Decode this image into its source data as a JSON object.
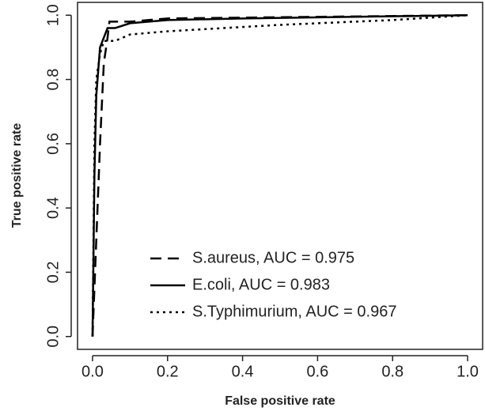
{
  "chart_data": {
    "type": "line",
    "xlabel": "False positive rate",
    "ylabel": "True positive rate",
    "xlim": [
      -0.04,
      1.04
    ],
    "ylim": [
      -0.04,
      1.04
    ],
    "xticks": [
      {
        "value": 0,
        "label": "0.0"
      },
      0.2,
      0.4,
      0.6,
      0.8,
      {
        "value": 1,
        "label": "1.0"
      }
    ],
    "yticks": [
      {
        "value": 0,
        "label": "0.0"
      },
      0.2,
      0.4,
      0.6,
      0.8,
      {
        "value": 1,
        "label": "1.0"
      }
    ],
    "grid": false,
    "legend": "bottom-right",
    "series": [
      {
        "name": "S.aureus, AUC = 0.975",
        "color": "#000000",
        "linestyle": "dashed",
        "x": [
          0,
          0.01,
          0.02,
          0.03,
          0.04,
          0.045,
          0.1,
          0.2,
          1
        ],
        "values": [
          0,
          0.3,
          0.6,
          0.85,
          0.93,
          0.98,
          0.98,
          0.99,
          1
        ]
      },
      {
        "name": "E.coli, AUC = 0.983",
        "color": "#000000",
        "linestyle": "solid",
        "x": [
          0,
          0.005,
          0.01,
          0.02,
          0.03,
          0.04,
          0.06,
          0.1,
          0.2,
          0.4,
          1
        ],
        "values": [
          0,
          0.5,
          0.75,
          0.9,
          0.93,
          0.96,
          0.96,
          0.975,
          0.985,
          0.99,
          1
        ]
      },
      {
        "name": "S.Typhimurium, AUC = 0.967",
        "color": "#000000",
        "linestyle": "dotted",
        "x": [
          0,
          0.005,
          0.01,
          0.02,
          0.03,
          0.06,
          0.1,
          0.2,
          0.5,
          0.8,
          1
        ],
        "values": [
          0,
          0.6,
          0.8,
          0.88,
          0.92,
          0.92,
          0.94,
          0.95,
          0.97,
          0.985,
          1
        ]
      }
    ]
  }
}
